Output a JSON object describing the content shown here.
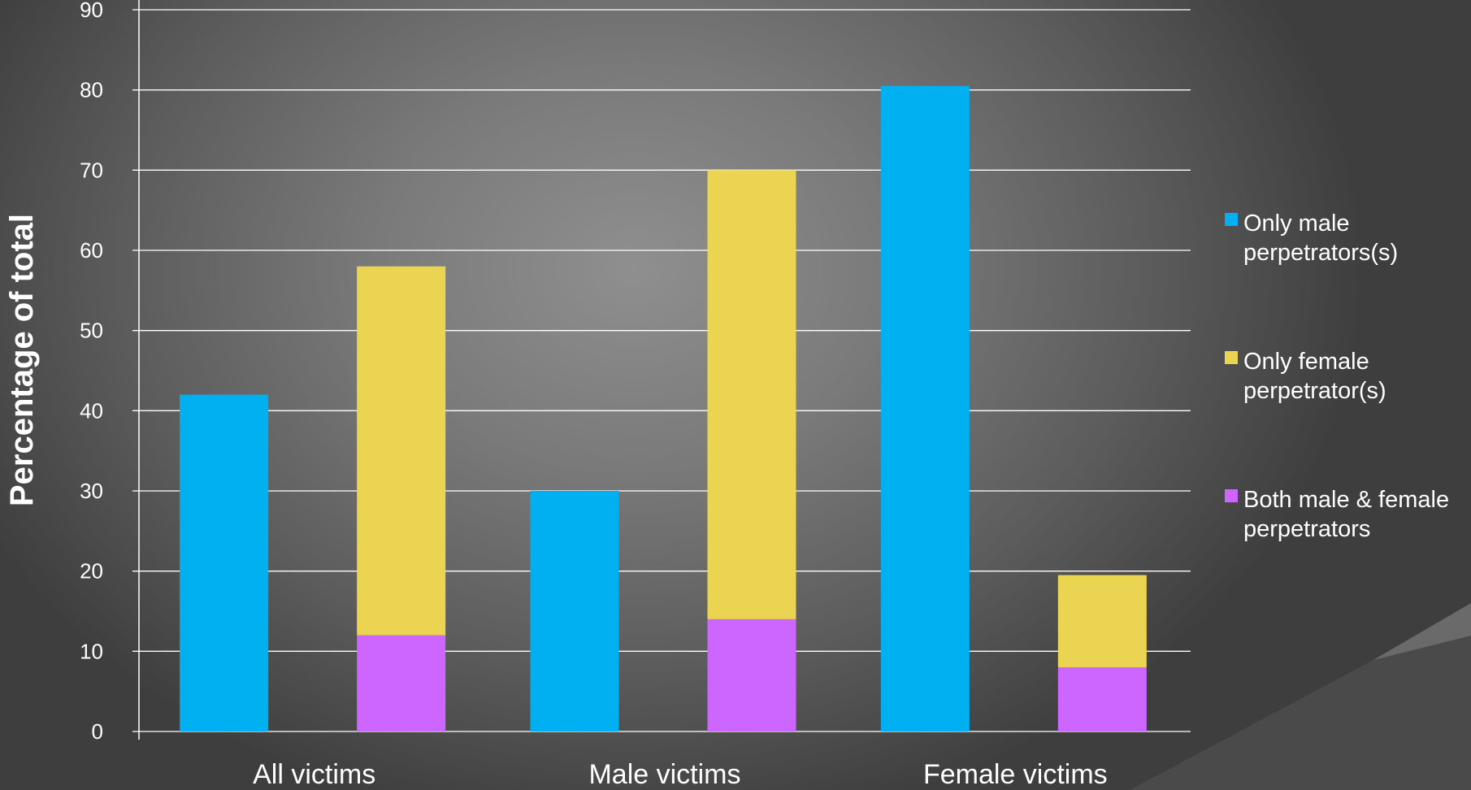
{
  "chart_data": {
    "type": "bar",
    "ylabel": "Percentage of total",
    "xlabel": "",
    "ylim": [
      0,
      90
    ],
    "yticks": [
      0,
      10,
      20,
      30,
      40,
      50,
      60,
      70,
      80,
      90
    ],
    "grid": true,
    "legend_position": "right",
    "categories": [
      "All victims",
      "Male victims",
      "Female victims"
    ],
    "series": [
      {
        "name": "Only male perpetrators(s)",
        "color": "#00b0f0",
        "stack": "male",
        "values": [
          42,
          30,
          80.5
        ]
      },
      {
        "name": "Both male & female perpetrators",
        "color": "#cc66ff",
        "stack": "other",
        "values": [
          12,
          14,
          8
        ]
      },
      {
        "name": "Only female perpetrator(s)",
        "color": "#ecd453",
        "stack": "other",
        "values": [
          46,
          56,
          11.5
        ]
      }
    ],
    "legend": [
      {
        "lines": [
          "Only male",
          "perpetrators(s)"
        ],
        "color": "#00b0f0"
      },
      {
        "lines": [
          "Only female",
          "perpetrator(s)"
        ],
        "color": "#ecd453"
      },
      {
        "lines": [
          "Both male & female",
          "perpetrators"
        ],
        "color": "#cc66ff"
      }
    ]
  }
}
